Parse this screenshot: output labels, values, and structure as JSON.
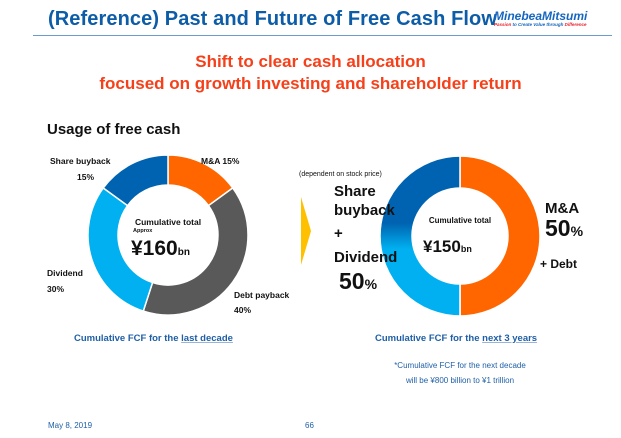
{
  "header": {
    "title": "(Reference) Past and Future of Free Cash Flow",
    "logo": {
      "name": "MinebeaMitsumi",
      "tagline_red": "Passion",
      "tagline_blue": " to Create Value through ",
      "tagline_red2": "Difference"
    },
    "rule_color": "#6d9ccc"
  },
  "headline": {
    "line1": "Shift to clear cash allocation",
    "line2": "focused on growth investing and shareholder return",
    "color": "#f5401a"
  },
  "section_title": "Usage of free cash",
  "colors": {
    "orange": "#ff6600",
    "gray": "#595959",
    "light_blue": "#00b0f0",
    "dark_blue": "#0063b1",
    "arrow": "#ffc000"
  },
  "chart_data": [
    {
      "type": "pie",
      "title": "Cumulative FCF for the last decade",
      "center_label": "Cumulative total",
      "center_sublabel": "Approx",
      "center_value": "¥160",
      "center_unit": "bn",
      "total_billion_yen": 160,
      "categories": [
        "M&A",
        "Debt payback",
        "Dividend",
        "Share buyback"
      ],
      "values": [
        15,
        40,
        30,
        15
      ],
      "unit": "%",
      "colors": [
        "#ff6600",
        "#595959",
        "#00b0f0",
        "#0063b1"
      ]
    },
    {
      "type": "pie",
      "title": "Cumulative FCF for the next 3 years",
      "center_label": "Cumulative total",
      "center_value": "¥150",
      "center_unit": "bn",
      "total_billion_yen": 150,
      "categories": [
        "M&A + Debt",
        "Share buyback + Dividend"
      ],
      "values": [
        50,
        50
      ],
      "unit": "%",
      "colors": [
        "#ff6600",
        "#0063b1/#00b0f0 gradient"
      ],
      "annotation": "(dependent on stock price)"
    }
  ],
  "left": {
    "labels": {
      "ma": "M&A 15%",
      "buyback_name": "Share buyback",
      "buyback_pct": "15%",
      "dividend_name": "Dividend",
      "dividend_pct": "30%",
      "debt_name": "Debt payback",
      "debt_pct": "40%"
    },
    "center": {
      "label": "Cumulative total",
      "sublabel": "Approx",
      "value": "¥160",
      "unit": "bn"
    },
    "caption_prefix": "Cumulative FCF for the ",
    "caption_link": "last decade"
  },
  "right": {
    "note_top": "(dependent on stock price)",
    "left_label": {
      "line1": "Share",
      "line2": "buyback",
      "line3": "+",
      "line4": "Dividend",
      "pct": "50",
      "pct_unit": "%"
    },
    "right_label": {
      "line1": "M&A",
      "pct": "50",
      "pct_unit": "%",
      "line3": "+ Debt"
    },
    "center": {
      "label": "Cumulative total",
      "value": "¥150",
      "unit": "bn"
    },
    "caption_prefix": "Cumulative FCF for the ",
    "caption_link": "next 3 years",
    "footnote_line1": "*Cumulative FCF for the next decade",
    "footnote_line2": "will be ¥800 billion to ¥1 trillion"
  },
  "footer": {
    "date": "May 8, 2019",
    "page": "66"
  }
}
